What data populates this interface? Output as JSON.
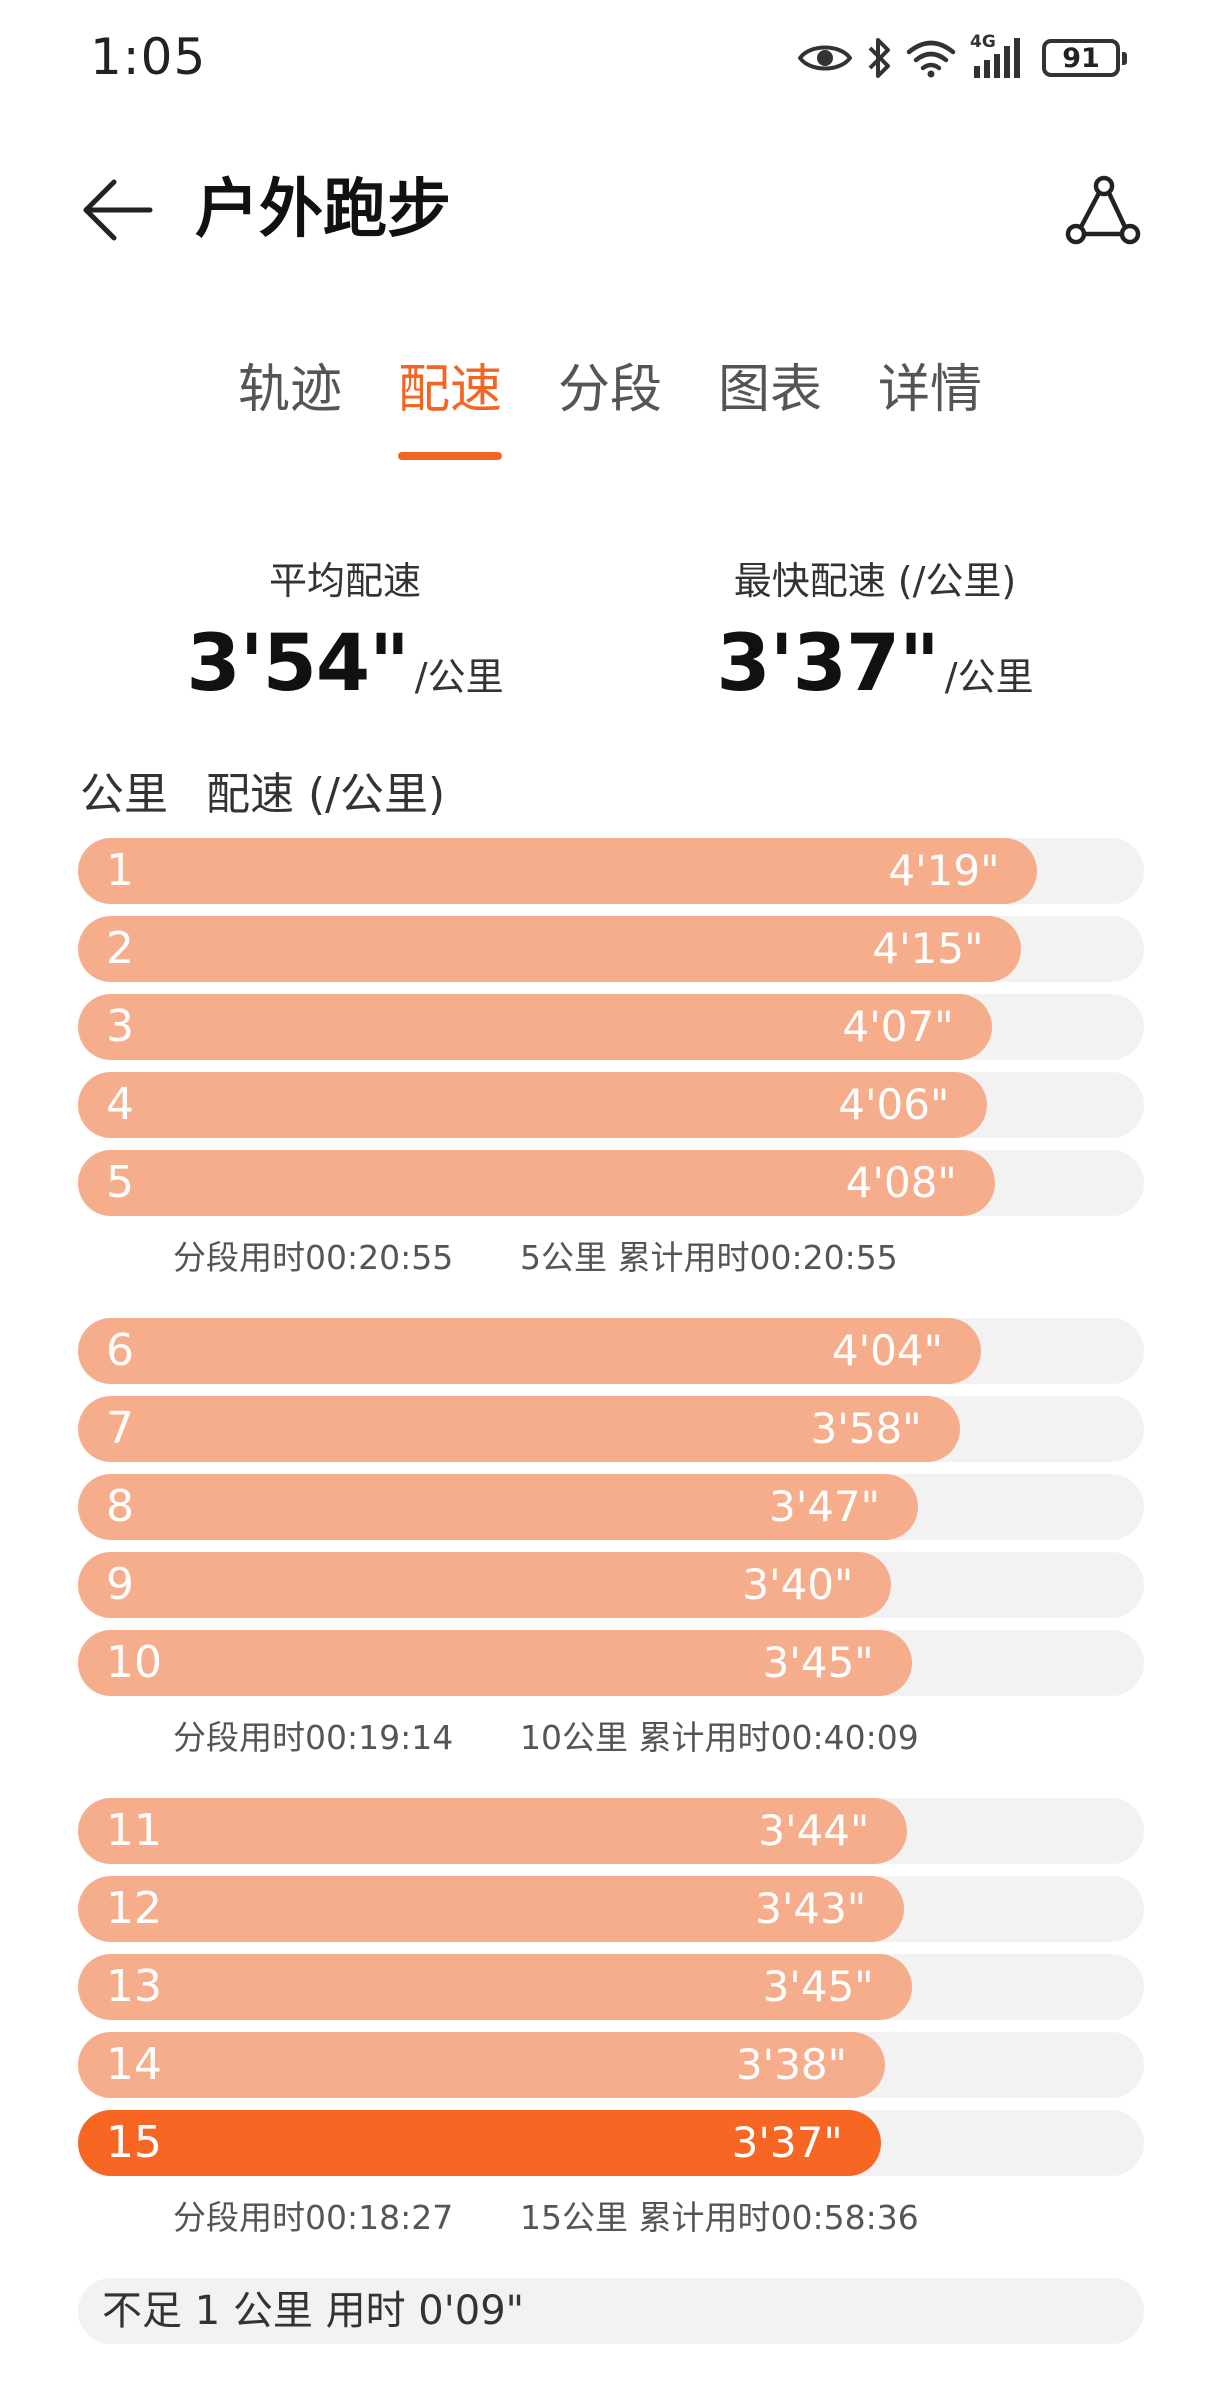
{
  "status_bar": {
    "time": "1:05",
    "network_label": "4G",
    "battery": "91"
  },
  "header": {
    "title": "户外跑步"
  },
  "tabs": [
    {
      "label": "轨迹",
      "active": false
    },
    {
      "label": "配速",
      "active": true
    },
    {
      "label": "分段",
      "active": false
    },
    {
      "label": "图表",
      "active": false
    },
    {
      "label": "详情",
      "active": false
    }
  ],
  "summary": {
    "average": {
      "label": "平均配速",
      "value": "3'54\"",
      "unit": "/公里"
    },
    "fastest": {
      "label": "最快配速 (/公里)",
      "value": "3'37\"",
      "unit": "/公里"
    }
  },
  "list_header": {
    "km": "公里",
    "pace": "配速 (/公里)"
  },
  "colors": {
    "accent": "#f26522",
    "bar": "#f6ad8c",
    "bar_fastest": "#f76623",
    "track": "#f2f2f2"
  },
  "groups": [
    {
      "rows": [
        {
          "km": "1",
          "pace": "4'19\"",
          "fraction": 0.9
        },
        {
          "km": "2",
          "pace": "4'15\"",
          "fraction": 0.885
        },
        {
          "km": "3",
          "pace": "4'07\"",
          "fraction": 0.857
        },
        {
          "km": "4",
          "pace": "4'06\"",
          "fraction": 0.853
        },
        {
          "km": "5",
          "pace": "4'08\"",
          "fraction": 0.86
        }
      ],
      "segment_time": "分段用时00:20:55",
      "cumulative": "5公里 累计用时00:20:55"
    },
    {
      "rows": [
        {
          "km": "6",
          "pace": "4'04\"",
          "fraction": 0.847
        },
        {
          "km": "7",
          "pace": "3'58\"",
          "fraction": 0.827
        },
        {
          "km": "8",
          "pace": "3'47\"",
          "fraction": 0.788
        },
        {
          "km": "9",
          "pace": "3'40\"",
          "fraction": 0.763
        },
        {
          "km": "10",
          "pace": "3'45\"",
          "fraction": 0.782
        }
      ],
      "segment_time": "分段用时00:19:14",
      "cumulative": "10公里 累计用时00:40:09"
    },
    {
      "rows": [
        {
          "km": "11",
          "pace": "3'44\"",
          "fraction": 0.778
        },
        {
          "km": "12",
          "pace": "3'43\"",
          "fraction": 0.775
        },
        {
          "km": "13",
          "pace": "3'45\"",
          "fraction": 0.782
        },
        {
          "km": "14",
          "pace": "3'38\"",
          "fraction": 0.757
        },
        {
          "km": "15",
          "pace": "3'37\"",
          "fraction": 0.753,
          "fastest": true
        }
      ],
      "segment_time": "分段用时00:18:27",
      "cumulative": "15公里 累计用时00:58:36"
    }
  ],
  "remainder": "不足 1 公里 用时 0'09\""
}
